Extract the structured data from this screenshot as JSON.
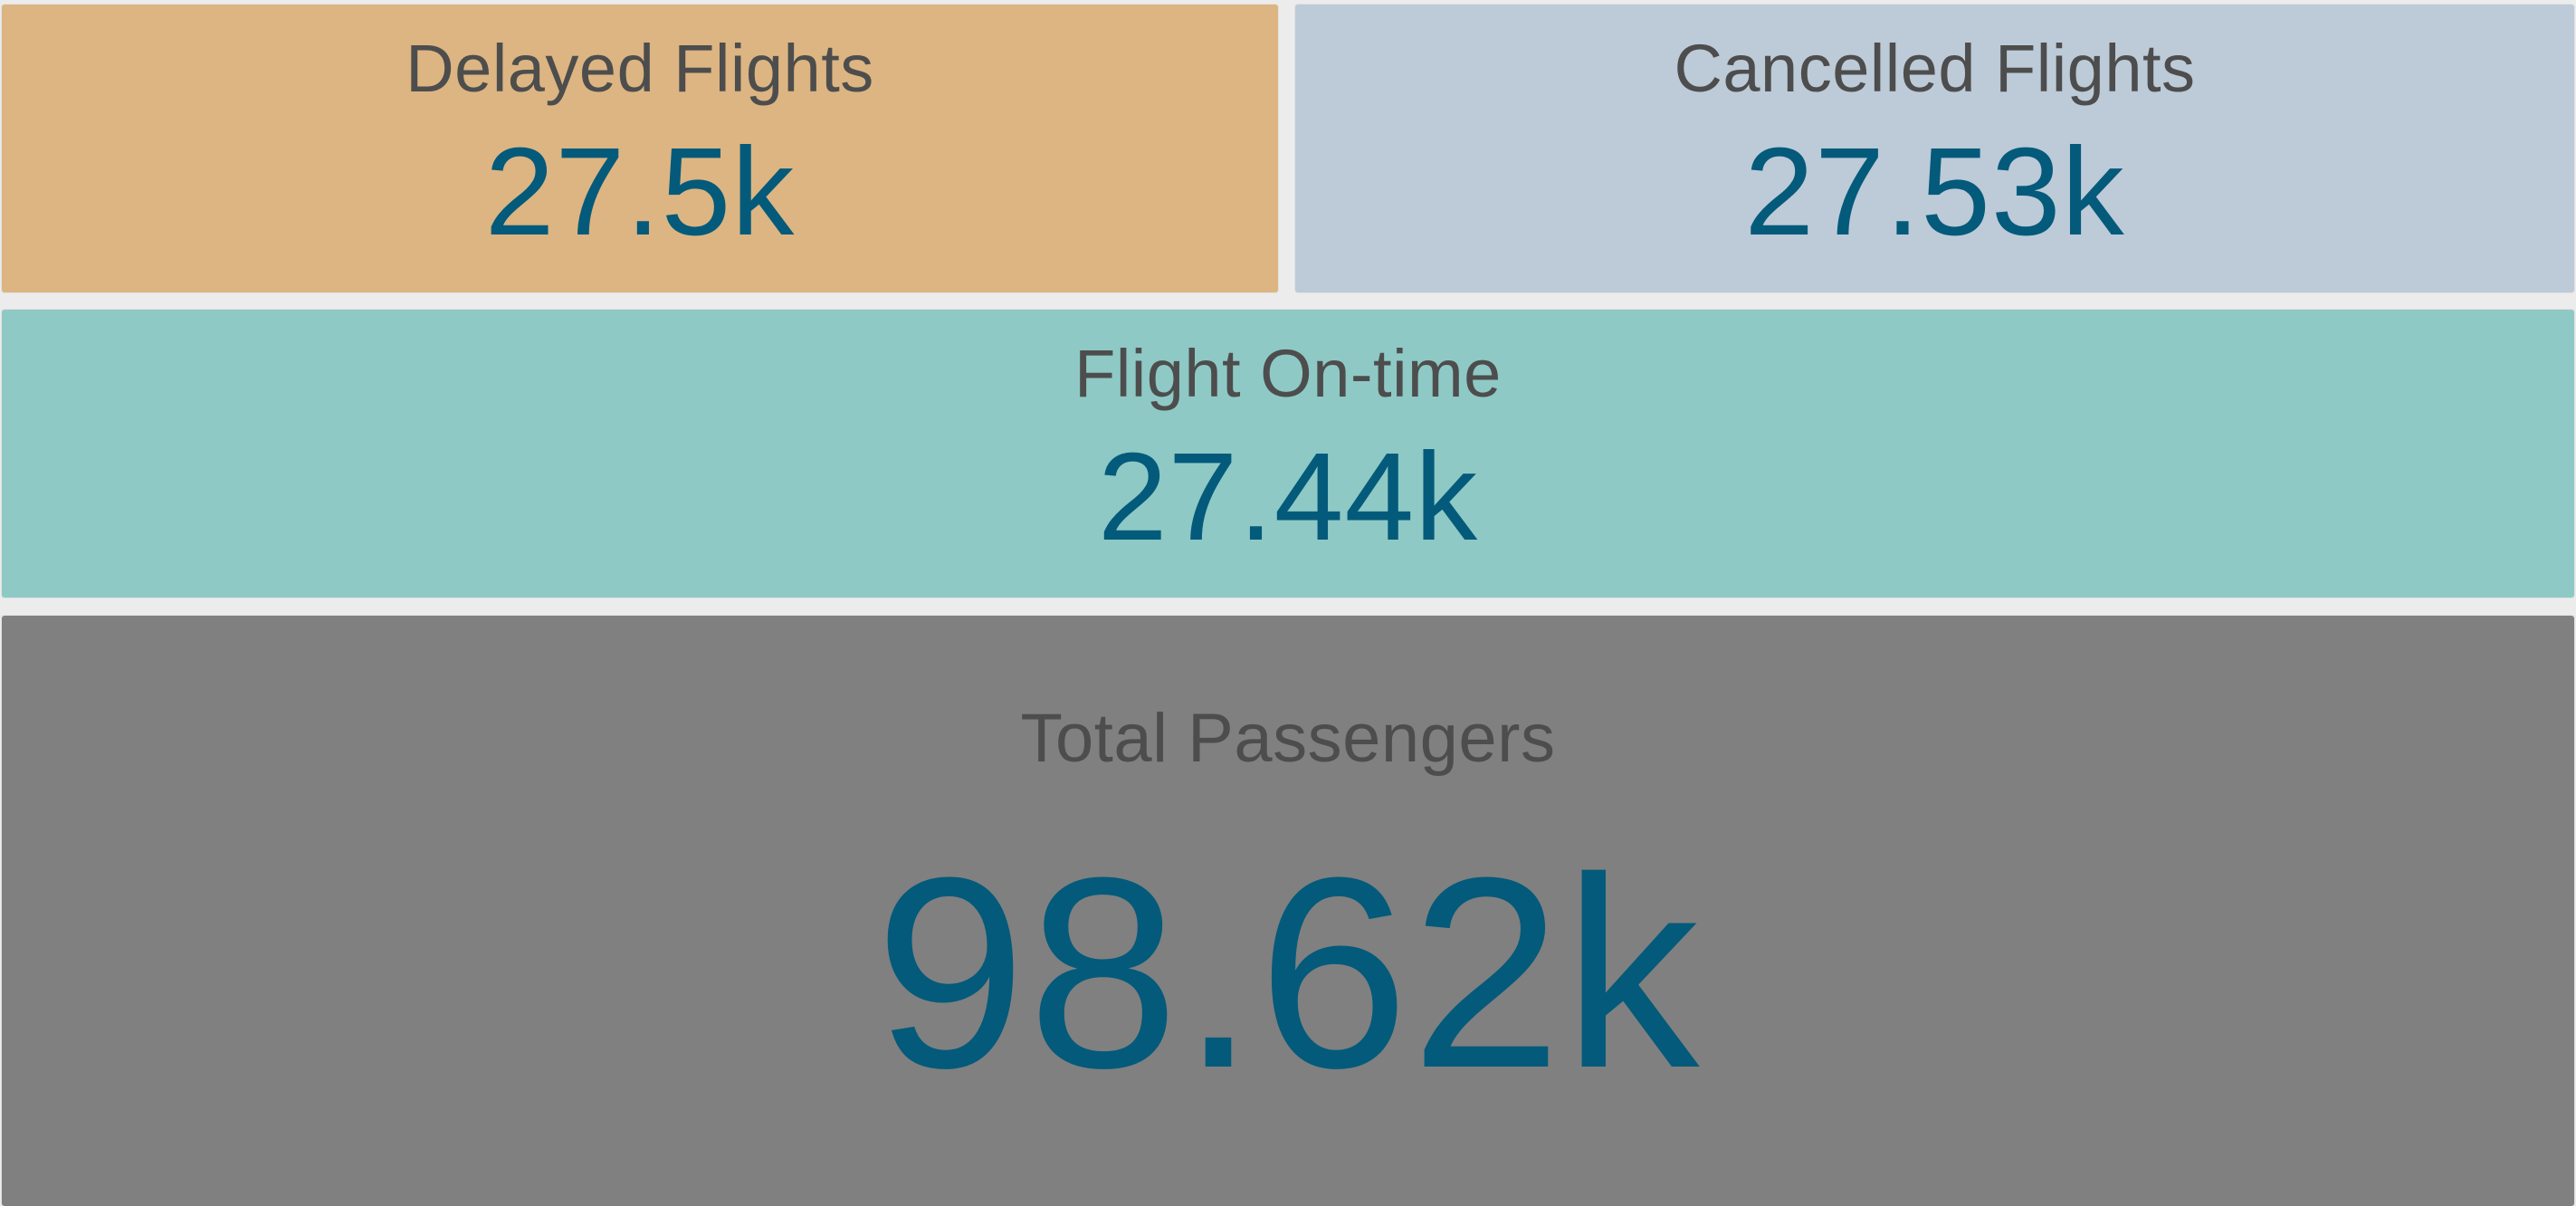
{
  "colors": {
    "delayed_bg": "#dcb582",
    "cancelled_bg": "#bdcad8",
    "ontime_bg": "#8ec9c5",
    "total_bg": "#808080",
    "value_text": "#045a7a",
    "title_text": "#4d4d4d"
  },
  "cards": {
    "delayed": {
      "title": "Delayed Flights",
      "value": "27.5k"
    },
    "cancelled": {
      "title": "Cancelled Flights",
      "value": "27.53k"
    },
    "ontime": {
      "title": "Flight On-time",
      "value": "27.44k"
    },
    "total": {
      "title": "Total Passengers",
      "value": "98.62k"
    }
  }
}
